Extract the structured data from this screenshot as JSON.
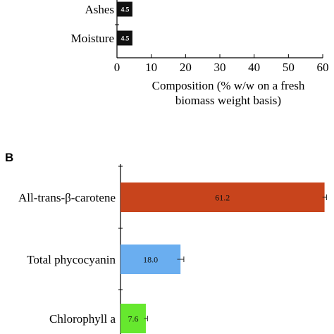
{
  "chart_data": [
    {
      "type": "bar",
      "orientation": "horizontal",
      "panel_label": "",
      "categories": [
        "Ashes",
        "Moisture"
      ],
      "values": [
        4.5,
        4.5
      ],
      "data_labels": [
        "4.5",
        "4.5"
      ],
      "bar_color": "#111111",
      "xlabel_line1": "Composition (% w/w on a fresh",
      "xlabel_line2": "biomass weight basis)",
      "ylabel": "",
      "xlim": [
        0,
        60
      ],
      "xticks": [
        0,
        10,
        20,
        30,
        40,
        50,
        60
      ],
      "grid": false,
      "legend": "none"
    },
    {
      "type": "bar",
      "orientation": "horizontal",
      "panel_label": "B",
      "categories": [
        "All-trans-β-carotene",
        "Total phycocyanin",
        "Chlorophyll a"
      ],
      "values": [
        61.2,
        18.0,
        7.6
      ],
      "data_labels": [
        "61.2",
        "18.0",
        "7.6"
      ],
      "error": [
        0.6,
        1.0,
        0.5
      ],
      "colors": [
        "#c8441c",
        "#6aaef0",
        "#66e82e"
      ],
      "xlabel": "",
      "ylabel": "",
      "xlim": [
        0,
        61.5
      ],
      "grid": false,
      "legend": "none"
    }
  ]
}
